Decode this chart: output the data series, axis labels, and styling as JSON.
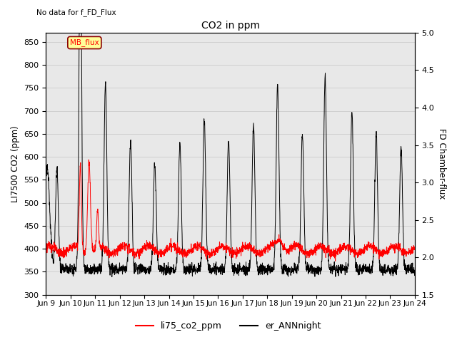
{
  "title": "CO2 in ppm",
  "title_note": "No data for f_FD_Flux",
  "ylabel_left": "LI7500 CO2 (ppm)",
  "ylabel_right": "FD Chamber-flux",
  "ylim_left": [
    300,
    870
  ],
  "ylim_right": [
    1.5,
    5.0
  ],
  "yticks_left": [
    300,
    350,
    400,
    450,
    500,
    550,
    600,
    650,
    700,
    750,
    800,
    850
  ],
  "yticks_right": [
    1.5,
    2.0,
    2.5,
    3.0,
    3.5,
    4.0,
    4.5,
    5.0
  ],
  "legend_labels": [
    "li75_co2_ppm",
    "er_ANNnight"
  ],
  "mb_flux_box_color": "#ffff99",
  "mb_flux_border_color": "#8b0000",
  "grid_color": "#d0d0d0",
  "background_color": "#e8e8e8",
  "date_labels": [
    "Jun 9",
    "Jun 10",
    "Jun 11",
    "Jun 12",
    "Jun 13",
    "Jun 14",
    "Jun 15",
    "Jun 16",
    "Jun 17",
    "Jun 18",
    "Jun 19",
    "Jun 20",
    "Jun 21",
    "Jun 22",
    "Jun 23",
    "Jun 24"
  ]
}
